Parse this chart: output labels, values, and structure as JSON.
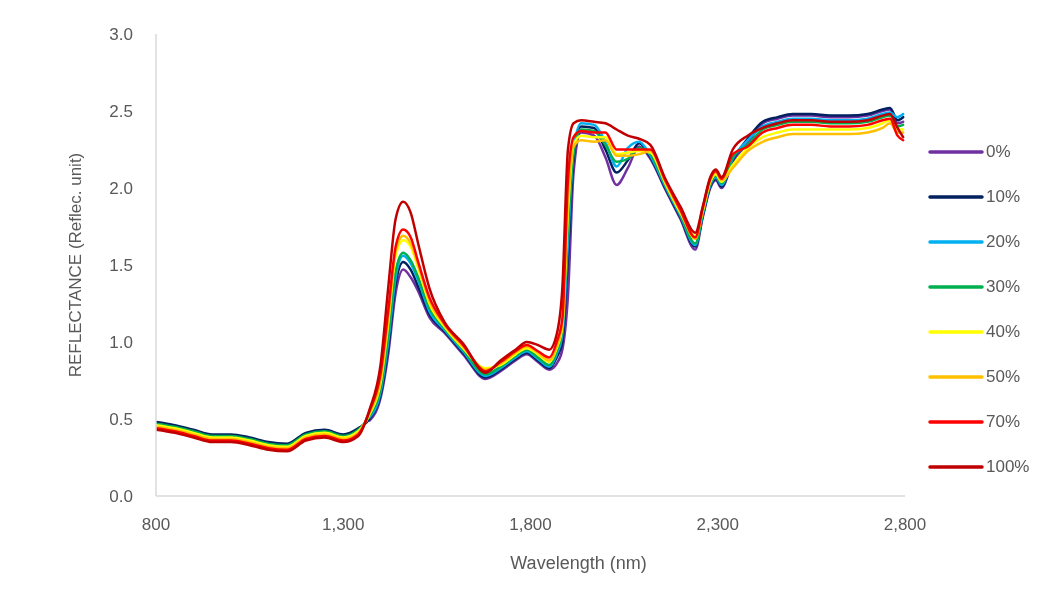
{
  "chart_data": {
    "type": "line",
    "xlabel": "Wavelength (nm)",
    "ylabel": "REFLECTANCE (Reflec. unit)",
    "x": [
      800,
      850,
      900,
      950,
      1000,
      1050,
      1100,
      1150,
      1200,
      1250,
      1300,
      1340,
      1370,
      1400,
      1420,
      1440,
      1460,
      1480,
      1500,
      1530,
      1570,
      1620,
      1680,
      1720,
      1760,
      1790,
      1820,
      1850,
      1870,
      1885,
      1900,
      1915,
      1935,
      1970,
      2000,
      2030,
      2060,
      2090,
      2120,
      2160,
      2200,
      2240,
      2260,
      2280,
      2295,
      2310,
      2340,
      2380,
      2420,
      2460,
      2500,
      2550,
      2600,
      2650,
      2700,
      2740,
      2760,
      2780,
      2795
    ],
    "series": [
      {
        "name": "0%",
        "color": "#7030a0",
        "values": [
          null,
          null,
          null,
          null,
          null,
          null,
          null,
          null,
          null,
          null,
          null,
          null,
          0.49,
          0.64,
          0.92,
          1.32,
          1.47,
          1.42,
          1.33,
          1.16,
          1.06,
          0.92,
          0.76,
          0.81,
          0.88,
          0.92,
          0.87,
          0.82,
          0.86,
          0.95,
          1.3,
          2.1,
          2.36,
          2.34,
          2.2,
          2.02,
          2.13,
          2.27,
          2.19,
          1.99,
          1.8,
          1.6,
          1.81,
          2.0,
          2.05,
          2.0,
          2.17,
          2.29,
          2.42,
          2.45,
          2.47,
          2.47,
          2.46,
          2.46,
          2.47,
          2.5,
          2.51,
          2.42,
          2.43
        ]
      },
      {
        "name": "10%",
        "color": "#002060",
        "values": [
          0.48,
          0.46,
          0.43,
          0.4,
          0.4,
          0.38,
          0.35,
          0.34,
          0.41,
          0.43,
          0.4,
          0.44,
          0.5,
          0.66,
          0.96,
          1.38,
          1.52,
          1.47,
          1.36,
          1.18,
          1.07,
          0.93,
          0.77,
          0.82,
          0.89,
          0.93,
          0.88,
          0.83,
          0.9,
          1.0,
          1.55,
          2.19,
          2.4,
          2.39,
          2.25,
          2.1,
          2.18,
          2.29,
          2.2,
          2.0,
          1.81,
          1.62,
          1.82,
          2.01,
          2.06,
          2.01,
          2.18,
          2.32,
          2.43,
          2.46,
          2.48,
          2.48,
          2.47,
          2.47,
          2.48,
          2.51,
          2.52,
          2.44,
          2.46
        ]
      },
      {
        "name": "20%",
        "color": "#00b0f0",
        "values": [
          null,
          null,
          null,
          null,
          null,
          null,
          null,
          null,
          null,
          null,
          null,
          null,
          0.51,
          0.68,
          1.0,
          1.42,
          1.56,
          1.51,
          1.4,
          1.2,
          1.08,
          0.94,
          0.78,
          0.83,
          0.9,
          0.94,
          0.89,
          0.84,
          0.92,
          1.05,
          1.65,
          2.25,
          2.42,
          2.41,
          2.3,
          2.14,
          2.26,
          2.3,
          2.21,
          2.01,
          1.82,
          1.63,
          1.83,
          2.02,
          2.07,
          2.02,
          2.19,
          2.31,
          2.4,
          2.43,
          2.45,
          2.45,
          2.44,
          2.44,
          2.45,
          2.48,
          2.49,
          2.46,
          2.48
        ]
      },
      {
        "name": "30%",
        "color": "#00b050",
        "values": [
          0.47,
          0.45,
          0.42,
          0.39,
          0.39,
          0.37,
          0.34,
          0.33,
          0.4,
          0.42,
          0.39,
          0.43,
          0.52,
          0.7,
          1.04,
          1.46,
          1.58,
          1.53,
          1.42,
          1.22,
          1.09,
          0.95,
          0.79,
          0.84,
          0.91,
          0.95,
          0.9,
          0.85,
          0.94,
          1.08,
          1.75,
          2.22,
          2.38,
          2.37,
          2.28,
          2.17,
          2.19,
          2.26,
          2.22,
          2.02,
          1.83,
          1.64,
          1.84,
          2.03,
          2.08,
          2.03,
          2.2,
          2.28,
          2.38,
          2.41,
          2.43,
          2.43,
          2.42,
          2.42,
          2.43,
          2.46,
          2.47,
          2.4,
          2.41
        ]
      },
      {
        "name": "40%",
        "color": "#ffff00",
        "values": [
          0.46,
          0.44,
          0.41,
          0.38,
          0.38,
          0.36,
          0.33,
          0.32,
          0.39,
          0.41,
          0.38,
          0.42,
          0.53,
          0.74,
          1.12,
          1.56,
          1.66,
          1.62,
          1.48,
          1.25,
          1.1,
          0.96,
          0.83,
          0.85,
          0.92,
          0.96,
          0.92,
          0.87,
          0.96,
          1.1,
          1.85,
          2.28,
          2.34,
          2.33,
          2.33,
          2.22,
          2.23,
          2.24,
          2.23,
          2.03,
          1.84,
          1.69,
          1.85,
          2.04,
          2.09,
          2.04,
          2.15,
          2.26,
          2.33,
          2.36,
          2.38,
          2.38,
          2.38,
          2.38,
          2.39,
          2.42,
          2.44,
          2.38,
          2.38
        ]
      },
      {
        "name": "50%",
        "color": "#ffc000",
        "values": [
          0.45,
          0.43,
          0.4,
          0.37,
          0.37,
          0.35,
          0.32,
          0.31,
          0.38,
          0.4,
          0.37,
          0.41,
          0.54,
          0.76,
          1.15,
          1.59,
          1.69,
          1.64,
          1.5,
          1.27,
          1.11,
          0.97,
          0.82,
          0.86,
          0.93,
          0.97,
          0.93,
          0.88,
          0.97,
          1.12,
          1.9,
          2.27,
          2.31,
          2.3,
          2.31,
          2.21,
          2.21,
          2.22,
          2.24,
          2.04,
          1.85,
          1.67,
          1.86,
          2.05,
          2.1,
          2.05,
          2.13,
          2.24,
          2.3,
          2.33,
          2.35,
          2.35,
          2.35,
          2.35,
          2.36,
          2.39,
          2.42,
          2.36,
          2.36
        ]
      },
      {
        "name": "70%",
        "color": "#ff0000",
        "values": [
          0.44,
          0.42,
          0.39,
          0.36,
          0.36,
          0.34,
          0.31,
          0.3,
          0.37,
          0.39,
          0.36,
          0.4,
          0.55,
          0.8,
          1.2,
          1.62,
          1.73,
          1.68,
          1.52,
          1.29,
          1.12,
          0.98,
          0.81,
          0.87,
          0.94,
          0.98,
          0.94,
          0.9,
          1.0,
          1.15,
          2.05,
          2.33,
          2.37,
          2.36,
          2.36,
          2.25,
          2.25,
          2.25,
          2.25,
          2.05,
          1.86,
          1.68,
          1.87,
          2.06,
          2.11,
          2.06,
          2.22,
          2.27,
          2.36,
          2.39,
          2.41,
          2.41,
          2.4,
          2.4,
          2.41,
          2.44,
          2.45,
          2.34,
          2.31
        ]
      },
      {
        "name": "100%",
        "color": "#c00000",
        "values": [
          0.43,
          0.41,
          0.38,
          0.35,
          0.35,
          0.33,
          0.3,
          0.29,
          0.36,
          0.38,
          0.35,
          0.39,
          0.56,
          0.86,
          1.35,
          1.8,
          1.91,
          1.84,
          1.64,
          1.35,
          1.13,
          0.99,
          0.8,
          0.88,
          0.95,
          1.0,
          0.98,
          0.95,
          1.05,
          1.35,
          2.25,
          2.42,
          2.44,
          2.43,
          2.42,
          2.38,
          2.34,
          2.32,
          2.28,
          2.06,
          1.88,
          1.71,
          1.88,
          2.07,
          2.12,
          2.07,
          2.25,
          2.34,
          2.39,
          2.42,
          2.44,
          2.44,
          2.43,
          2.43,
          2.44,
          2.47,
          2.48,
          2.39,
          2.33
        ]
      }
    ],
    "xlim": [
      800,
      2800
    ],
    "xticks": [
      800,
      {
        "value": 1300,
        "label": "1,300"
      },
      {
        "value": 1800,
        "label": "1,800"
      },
      {
        "value": 2300,
        "label": "2,300"
      },
      {
        "value": 2800,
        "label": "2,800"
      }
    ],
    "ylim": [
      0,
      3
    ],
    "yticks": [
      {
        "value": 0,
        "label": "0.0"
      },
      0.5,
      {
        "value": 1,
        "label": "1.0"
      },
      1.5,
      {
        "value": 2,
        "label": "2.0"
      },
      2.5,
      {
        "value": 3,
        "label": "3.0"
      }
    ],
    "legend": "right"
  }
}
